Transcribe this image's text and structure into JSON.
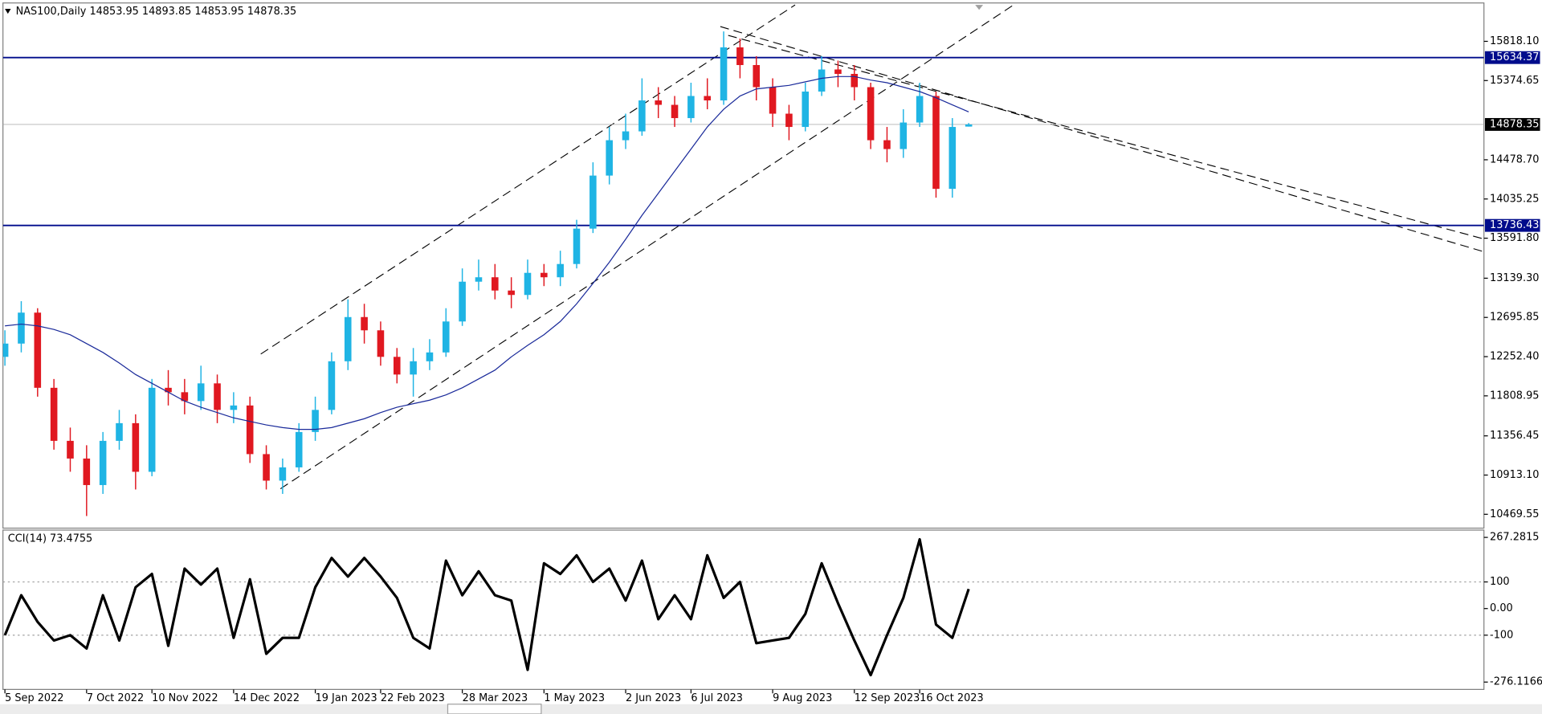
{
  "chart_data": [
    {
      "type": "candlestick",
      "title": "NAS100,Daily  14853.95 14893.85 14853.95 14878.35",
      "categories": [
        "5 Sep 2022",
        null,
        null,
        null,
        null,
        "7 Oct 2022",
        null,
        null,
        null,
        "10 Nov 2022",
        null,
        null,
        null,
        null,
        "14 Dec 2022",
        null,
        null,
        null,
        null,
        "19 Jan 2023",
        null,
        null,
        null,
        "22 Feb 2023",
        null,
        null,
        null,
        null,
        "28 Mar 2023",
        null,
        null,
        null,
        null,
        "1 May 2023",
        null,
        null,
        null,
        null,
        "2 Jun 2023",
        null,
        null,
        null,
        "6 Jul 2023",
        null,
        null,
        null,
        null,
        "9 Aug 2023",
        null,
        null,
        null,
        null,
        "12 Sep 2023",
        null,
        null,
        null,
        "16 Oct 2023",
        null,
        null,
        null
      ],
      "open": [
        12250,
        12400,
        12750,
        11900,
        11300,
        11100,
        10800,
        11300,
        11500,
        10950,
        11900,
        11850,
        11750,
        11950,
        11650,
        11700,
        11150,
        10850,
        11000,
        11400,
        11650,
        12200,
        12700,
        12550,
        12250,
        12050,
        12200,
        12300,
        12650,
        13100,
        13150,
        13000,
        12950,
        13200,
        13150,
        13300,
        13700,
        14300,
        14700,
        14800,
        15150,
        15100,
        14950,
        15200,
        15150,
        15750,
        15550,
        15300,
        15000,
        14850,
        15250,
        15500,
        15450,
        15300,
        14700,
        14600,
        14900,
        15200,
        14150,
        14853.95
      ],
      "high": [
        12550,
        12880,
        12800,
        12000,
        11450,
        11250,
        11400,
        11650,
        11600,
        12000,
        12100,
        12000,
        12150,
        12050,
        11850,
        11800,
        11250,
        11100,
        11500,
        11800,
        12300,
        12900,
        12850,
        12650,
        12350,
        12350,
        12450,
        12800,
        13250,
        13350,
        13300,
        13150,
        13350,
        13300,
        13450,
        13800,
        14450,
        14850,
        15000,
        15400,
        15300,
        15200,
        15350,
        15400,
        15930,
        15850,
        15650,
        15400,
        15100,
        15350,
        15650,
        15600,
        15550,
        15350,
        14850,
        15050,
        15350,
        15250,
        14950,
        14893.85
      ],
      "low": [
        12150,
        12300,
        11800,
        11200,
        10950,
        10450,
        10700,
        11200,
        10750,
        10900,
        11700,
        11600,
        11650,
        11500,
        11500,
        11050,
        10750,
        10700,
        10950,
        11300,
        11600,
        12100,
        12400,
        12150,
        11950,
        11800,
        12100,
        12250,
        12600,
        13000,
        12900,
        12800,
        12900,
        13050,
        13050,
        13250,
        13650,
        14200,
        14600,
        14750,
        14950,
        14850,
        14900,
        15050,
        15100,
        15400,
        15150,
        14850,
        14700,
        14800,
        15200,
        15300,
        15150,
        14600,
        14450,
        14500,
        14850,
        14050,
        14050,
        14853.95
      ],
      "close": [
        12400,
        12750,
        11900,
        11300,
        11100,
        10800,
        11300,
        11500,
        10950,
        11900,
        11850,
        11750,
        11950,
        11650,
        11700,
        11150,
        10850,
        11000,
        11400,
        11650,
        12200,
        12700,
        12550,
        12250,
        12050,
        12200,
        12300,
        12650,
        13100,
        13150,
        13000,
        12950,
        13200,
        13150,
        13300,
        13700,
        14300,
        14700,
        14800,
        15150,
        15100,
        14950,
        15200,
        15150,
        15750,
        15550,
        15300,
        15000,
        14850,
        15250,
        15500,
        15450,
        15300,
        14700,
        14600,
        14900,
        15200,
        14150,
        14850,
        14878.35
      ],
      "up_color": "#1fb4e4",
      "down_color": "#e01820",
      "ma": {
        "color": "#1a2a9a",
        "values": [
          12600,
          12620,
          12600,
          12560,
          12500,
          12400,
          12300,
          12180,
          12050,
          11950,
          11850,
          11750,
          11680,
          11620,
          11560,
          11520,
          11480,
          11450,
          11430,
          11430,
          11450,
          11500,
          11550,
          11620,
          11680,
          11720,
          11760,
          11820,
          11900,
          12000,
          12100,
          12250,
          12380,
          12500,
          12650,
          12850,
          13080,
          13320,
          13580,
          13850,
          14100,
          14350,
          14600,
          14850,
          15050,
          15200,
          15280,
          15300,
          15320,
          15360,
          15400,
          15420,
          15420,
          15380,
          15350,
          15300,
          15250,
          15180,
          15100,
          15020
        ]
      },
      "hlines": [
        {
          "value": 15634.37,
          "color": "#000c8c"
        },
        {
          "value": 13736.43,
          "color": "#000c8c"
        }
      ],
      "ylim": [
        10313,
        16230
      ],
      "yticks": [
        {
          "value": 15818.1,
          "label": "15818.10"
        },
        15374.65,
        {
          "value": 14478.7,
          "label": "14478.70"
        },
        14035.25,
        {
          "value": 13591.8,
          "label": "13591.80"
        },
        {
          "value": 13139.3,
          "label": "13139.30"
        },
        12695.85,
        {
          "value": 12252.4,
          "label": "12252.40"
        },
        11808.95,
        11356.45,
        {
          "value": 10913.1,
          "label": "10913.10"
        },
        10469.55
      ]
    },
    {
      "type": "line",
      "title": "CCI(14) 73.4755",
      "series": [
        {
          "color": "#000000",
          "values": [
            -100,
            50,
            -50,
            -120,
            -100,
            -150,
            50,
            -120,
            80,
            130,
            -140,
            150,
            90,
            150,
            -110,
            110,
            -170,
            -110,
            -110,
            80,
            190,
            120,
            190,
            120,
            40,
            -110,
            -150,
            180,
            50,
            140,
            50,
            30,
            -230,
            170,
            130,
            200,
            100,
            150,
            30,
            180,
            -40,
            50,
            -40,
            200,
            40,
            100,
            -130,
            -120,
            -110,
            -20,
            170,
            20,
            -120,
            -250,
            -100,
            40,
            260,
            -60,
            -110,
            73.4755
          ]
        }
      ],
      "levels": [
        100,
        -100
      ],
      "ylim": [
        -300,
        291
      ],
      "yticks": [
        267.2815,
        100,
        {
          "value": 0,
          "label": "0.00"
        },
        -100,
        -276.1166
      ]
    }
  ]
}
